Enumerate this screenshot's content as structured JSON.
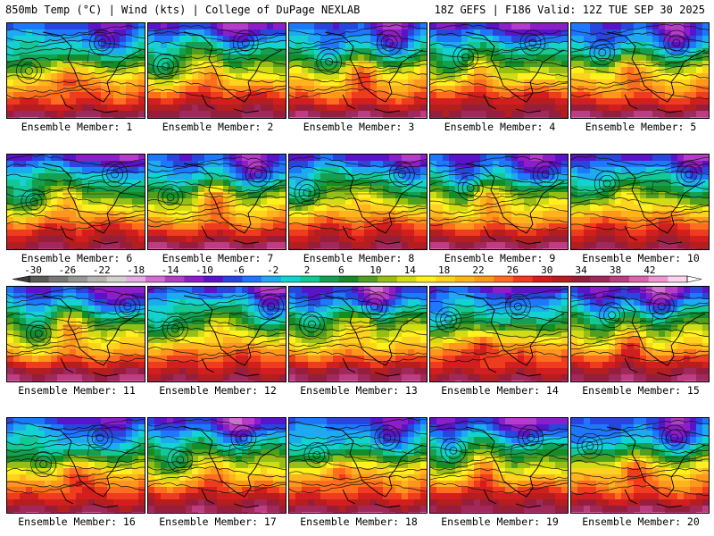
{
  "header": {
    "left": "850mb Temp (°C) | Wind (kts) | College of DuPage NEXLAB",
    "right": "18Z GEFS | F186 Valid: 12Z TUE SEP 30 2025"
  },
  "members": [
    {
      "label": "Ensemble Member: 1"
    },
    {
      "label": "Ensemble Member: 2"
    },
    {
      "label": "Ensemble Member: 3"
    },
    {
      "label": "Ensemble Member: 4"
    },
    {
      "label": "Ensemble Member: 5"
    },
    {
      "label": "Ensemble Member: 6"
    },
    {
      "label": "Ensemble Member: 7"
    },
    {
      "label": "Ensemble Member: 8"
    },
    {
      "label": "Ensemble Member: 9"
    },
    {
      "label": "Ensemble Member: 10"
    },
    {
      "label": "Ensemble Member: 11"
    },
    {
      "label": "Ensemble Member: 12"
    },
    {
      "label": "Ensemble Member: 13"
    },
    {
      "label": "Ensemble Member: 14"
    },
    {
      "label": "Ensemble Member: 15"
    },
    {
      "label": "Ensemble Member: 16"
    },
    {
      "label": "Ensemble Member: 17"
    },
    {
      "label": "Ensemble Member: 18"
    },
    {
      "label": "Ensemble Member: 19"
    },
    {
      "label": "Ensemble Member: 20"
    }
  ],
  "colorbar": {
    "ticks": [
      "-30",
      "-26",
      "-22",
      "-18",
      "-14",
      "-10",
      "-6",
      "-2",
      "2",
      "6",
      "10",
      "14",
      "18",
      "22",
      "26",
      "30",
      "34",
      "38",
      "42"
    ],
    "colors": [
      "#5a5a5a",
      "#787878",
      "#969696",
      "#b4b4b4",
      "#d2d2d2",
      "#e6aae6",
      "#d26ed2",
      "#b43cc8",
      "#8c1ec8",
      "#5a14c8",
      "#2846dc",
      "#1e78ff",
      "#1eaaf0",
      "#14d2d2",
      "#14c896",
      "#14a050",
      "#148c28",
      "#50a01e",
      "#96be14",
      "#d2dc14",
      "#fff01e",
      "#ffd21e",
      "#ffb41e",
      "#ff961e",
      "#ff6e1e",
      "#f03c1e",
      "#d21e1e",
      "#b41e1e",
      "#961e3c",
      "#a0285a",
      "#be3c82",
      "#dc64aa",
      "#f096d2",
      "#ffd2f0"
    ]
  }
}
